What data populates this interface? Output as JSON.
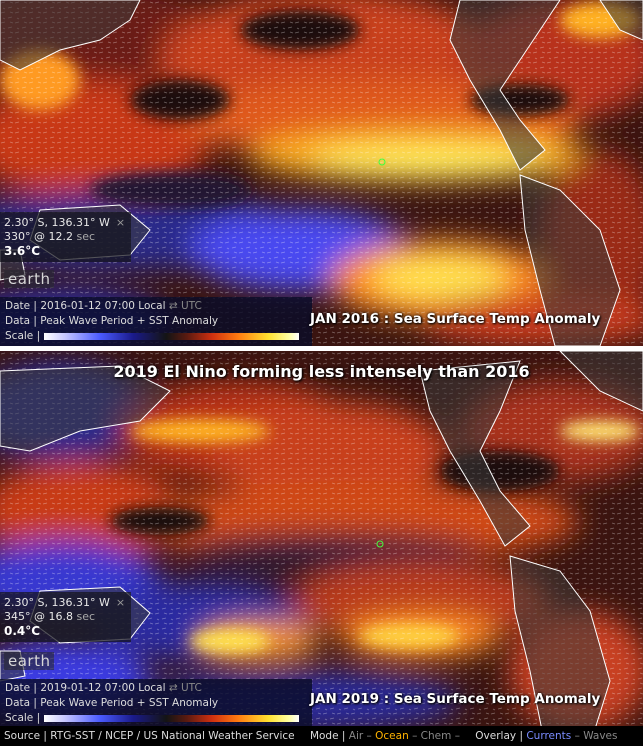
{
  "top_panel": {
    "readout": {
      "coords": "2.30° S, 136.31° W",
      "close": "×",
      "wave": "330° @ 12.2",
      "wave_unit": "sec",
      "sst": "3.6°C"
    },
    "earth_label": "earth",
    "info": {
      "date_label": "Date |",
      "date_value": "2016-01-12 07:00 Local",
      "utc_toggle": "⇄ UTC",
      "data_label": "Data |",
      "data_value": "Peak Wave Period + SST Anomaly",
      "scale_label": "Scale |"
    },
    "caption": "JAN 2016 : Sea Surface Temp Anomaly"
  },
  "bottom_panel": {
    "headline": "2019 El Nino forming less intensely than 2016",
    "readout": {
      "coords": "2.30° S, 136.31° W",
      "close": "×",
      "wave": "345° @ 16.8",
      "wave_unit": "sec",
      "sst": "0.4°C"
    },
    "earth_label": "earth",
    "info": {
      "date_label": "Date |",
      "date_value": "2019-01-12 07:00 Local",
      "utc_toggle": "⇄ UTC",
      "data_label": "Data |",
      "data_value": "Peak Wave Period + SST Anomaly",
      "scale_label": "Scale |"
    },
    "caption": "JAN 2019 : Sea Surface Temp Anomaly"
  },
  "footer": {
    "source": "Source | RTG-SST / NCEP / US National Weather Service",
    "mode_label": "Mode |",
    "air": "Air",
    "sep1": "–",
    "ocean": "Ocean",
    "sep2": "–",
    "chem": "Chem",
    "sep3": "–",
    "overlay_label": "Overlay |",
    "currents": "Currents",
    "sep4": "–",
    "waves": "Waves"
  },
  "colors": {
    "cold": "#3a3aff",
    "neutral": "#141414",
    "warm": "#e0401a",
    "hot": "#ffe040",
    "coast": "#ffffff"
  }
}
